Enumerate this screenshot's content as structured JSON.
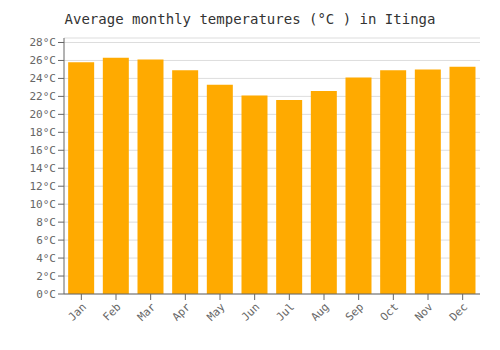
{
  "chart_data": {
    "type": "bar",
    "title": "Average monthly temperatures (°C ) in Itinga",
    "categories": [
      "Jan",
      "Feb",
      "Mar",
      "Apr",
      "May",
      "Jun",
      "Jul",
      "Aug",
      "Sep",
      "Oct",
      "Nov",
      "Dec"
    ],
    "values": [
      25.8,
      26.3,
      26.1,
      24.9,
      23.3,
      22.1,
      21.6,
      22.6,
      24.1,
      24.9,
      25.0,
      25.3
    ],
    "color": "#FFAA00",
    "ylim": [
      0,
      28.5
    ],
    "yticks": [
      {
        "value": 0,
        "label": "0°C"
      },
      {
        "value": 2,
        "label": "2°C"
      },
      {
        "value": 4,
        "label": "4°C"
      },
      {
        "value": 6,
        "label": "6°C"
      },
      {
        "value": 8,
        "label": "8°C"
      },
      {
        "value": 10,
        "label": "10°C"
      },
      {
        "value": 12,
        "label": "12°C"
      },
      {
        "value": 14,
        "label": "14°C"
      },
      {
        "value": 16,
        "label": "16°C"
      },
      {
        "value": 18,
        "label": "18°C"
      },
      {
        "value": 20,
        "label": "20°C"
      },
      {
        "value": 22,
        "label": "22°C"
      },
      {
        "value": 24,
        "label": "24°C"
      },
      {
        "value": 26,
        "label": "26°C"
      },
      {
        "value": 28,
        "label": "28°C"
      }
    ],
    "grid": true
  }
}
